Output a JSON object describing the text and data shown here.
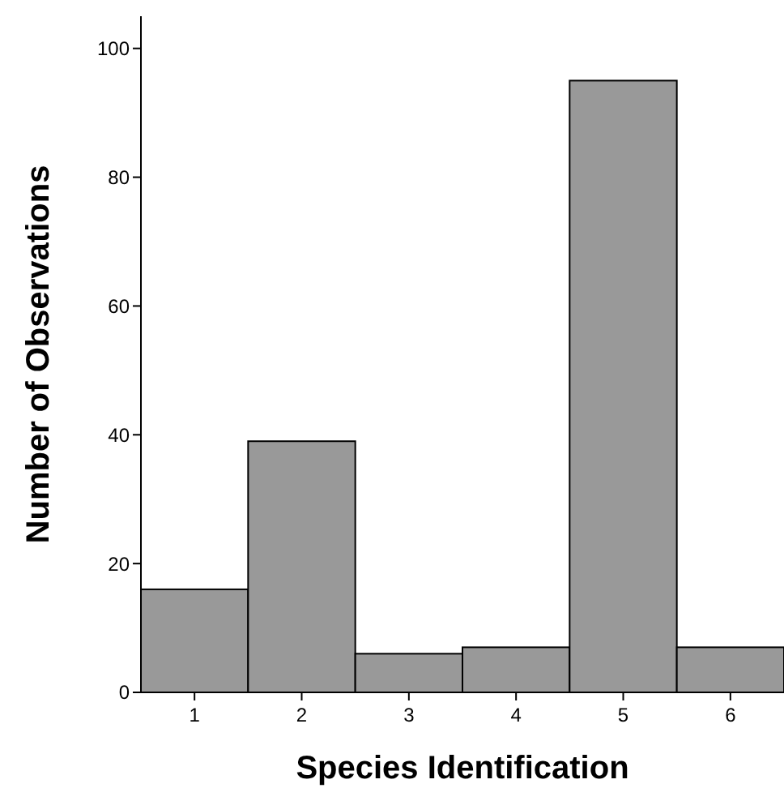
{
  "chart_data": {
    "type": "bar",
    "xlabel": "Species Identification",
    "ylabel": "Number of Observations",
    "categories": [
      "1",
      "2",
      "3",
      "4",
      "5",
      "6"
    ],
    "values": [
      16,
      39,
      6,
      7,
      95,
      7
    ],
    "color": "#999999",
    "ylim": [
      0,
      105
    ],
    "yticks": [
      0,
      20,
      40,
      60,
      80,
      100
    ],
    "grid": false
  }
}
